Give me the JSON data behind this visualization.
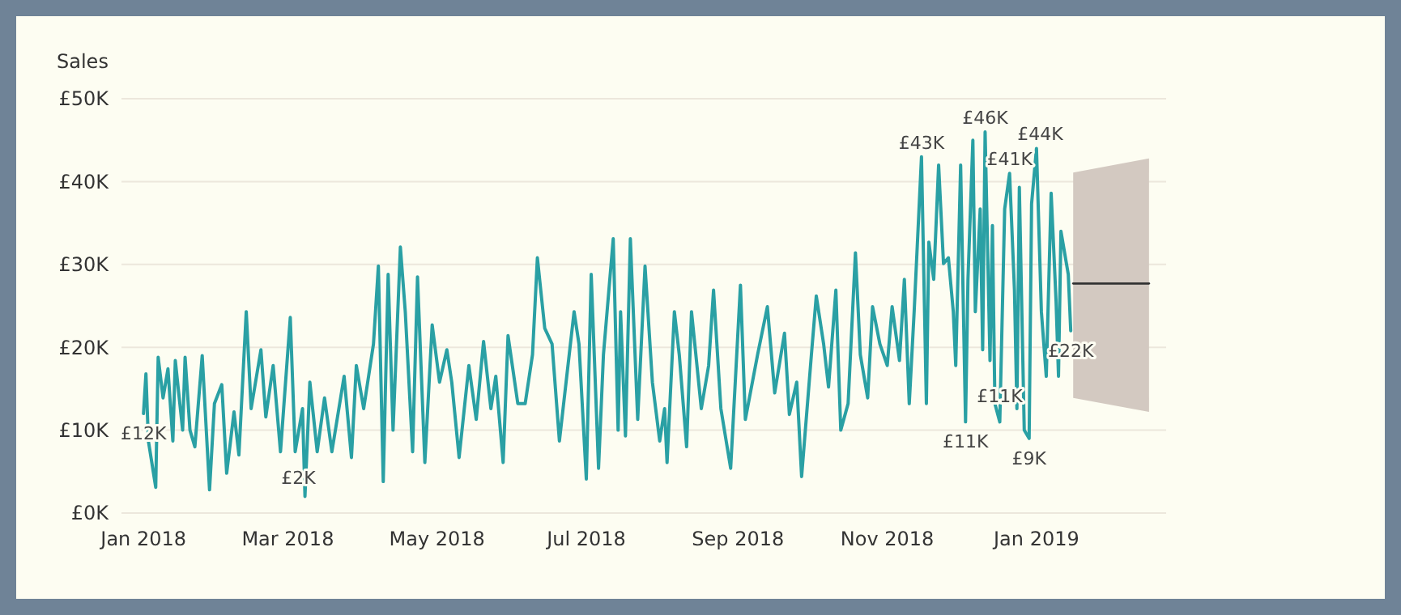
{
  "chart_data": {
    "type": "line",
    "ylabel": "Sales",
    "xlim": [
      "2017-12-23",
      "2019-02-23"
    ],
    "xticks": [
      {
        "value": "2018-01-01",
        "label": "Jan 2018"
      },
      {
        "value": "2018-03-01",
        "label": "Mar 2018"
      },
      {
        "value": "2018-05-01",
        "label": "May 2018"
      },
      {
        "value": "2018-07-01",
        "label": "Jul 2018"
      },
      {
        "value": "2018-09-01",
        "label": "Sep 2018"
      },
      {
        "value": "2018-11-01",
        "label": "Nov 2018"
      },
      {
        "value": "2019-01-01",
        "label": "Jan 2019"
      }
    ],
    "ylim": [
      0,
      50
    ],
    "yticks": [
      {
        "value": 0,
        "label": "£0K"
      },
      {
        "value": 10,
        "label": "£10K"
      },
      {
        "value": 20,
        "label": "£20K"
      },
      {
        "value": 30,
        "label": "£30K"
      },
      {
        "value": 40,
        "label": "£40K"
      },
      {
        "value": 50,
        "label": "£50K"
      }
    ],
    "grid": "y",
    "legend": false,
    "marker": "none",
    "line_style": "solid",
    "series": [
      {
        "type": "line",
        "color": "#2aa0a4",
        "x": [
          "2018-01-01",
          "2018-01-02",
          "2018-01-03",
          "2018-01-06",
          "2018-01-07",
          "2018-01-09",
          "2018-01-11",
          "2018-01-13",
          "2018-01-14",
          "2018-01-17",
          "2018-01-18",
          "2018-01-20",
          "2018-01-22",
          "2018-01-25",
          "2018-01-28",
          "2018-01-30",
          "2018-02-02",
          "2018-02-04",
          "2018-02-07",
          "2018-02-09",
          "2018-02-12",
          "2018-02-14",
          "2018-02-18",
          "2018-02-20",
          "2018-02-23",
          "2018-02-26",
          "2018-03-02",
          "2018-03-04",
          "2018-03-07",
          "2018-03-08",
          "2018-03-10",
          "2018-03-13",
          "2018-03-16",
          "2018-03-19",
          "2018-03-24",
          "2018-03-27",
          "2018-03-29",
          "2018-04-01",
          "2018-04-05",
          "2018-04-07",
          "2018-04-09",
          "2018-04-11",
          "2018-04-13",
          "2018-04-16",
          "2018-04-18",
          "2018-04-21",
          "2018-04-23",
          "2018-04-26",
          "2018-04-29",
          "2018-05-02",
          "2018-05-05",
          "2018-05-07",
          "2018-05-10",
          "2018-05-14",
          "2018-05-17",
          "2018-05-20",
          "2018-05-23",
          "2018-05-25",
          "2018-05-28",
          "2018-05-30",
          "2018-06-03",
          "2018-06-06",
          "2018-06-09",
          "2018-06-11",
          "2018-06-14",
          "2018-06-17",
          "2018-06-20",
          "2018-06-24",
          "2018-06-26",
          "2018-06-28",
          "2018-07-01",
          "2018-07-03",
          "2018-07-06",
          "2018-07-08",
          "2018-07-12",
          "2018-07-14",
          "2018-07-15",
          "2018-07-17",
          "2018-07-19",
          "2018-07-22",
          "2018-07-25",
          "2018-07-28",
          "2018-07-31",
          "2018-08-02",
          "2018-08-03",
          "2018-08-06",
          "2018-08-08",
          "2018-08-11",
          "2018-08-13",
          "2018-08-17",
          "2018-08-20",
          "2018-08-22",
          "2018-08-25",
          "2018-08-29",
          "2018-09-02",
          "2018-09-04",
          "2018-09-09",
          "2018-09-13",
          "2018-09-16",
          "2018-09-20",
          "2018-09-22",
          "2018-09-25",
          "2018-09-27",
          "2018-10-01",
          "2018-10-03",
          "2018-10-06",
          "2018-10-08",
          "2018-10-11",
          "2018-10-13",
          "2018-10-16",
          "2018-10-19",
          "2018-10-21",
          "2018-10-24",
          "2018-10-26",
          "2018-10-29",
          "2018-11-01",
          "2018-11-03",
          "2018-11-06",
          "2018-11-08",
          "2018-11-10",
          "2018-11-12",
          "2018-11-15",
          "2018-11-17",
          "2018-11-18",
          "2018-11-20",
          "2018-11-22",
          "2018-11-24",
          "2018-11-26",
          "2018-11-28",
          "2018-11-29",
          "2018-12-01",
          "2018-12-03",
          "2018-12-04",
          "2018-12-06",
          "2018-12-07",
          "2018-12-09",
          "2018-12-10",
          "2018-12-11",
          "2018-12-13",
          "2018-12-14",
          "2018-12-15",
          "2018-12-17",
          "2018-12-19",
          "2018-12-21",
          "2018-12-23",
          "2018-12-24",
          "2018-12-25",
          "2018-12-27",
          "2018-12-29",
          "2018-12-30",
          "2019-01-01",
          "2019-01-03",
          "2019-01-05",
          "2019-01-07",
          "2019-01-09",
          "2019-01-10",
          "2019-01-11",
          "2019-01-14",
          "2019-01-15"
        ],
        "values": [
          12,
          16.8,
          8.7,
          3.1,
          18.8,
          13.9,
          17.4,
          8.7,
          18.4,
          10,
          18.8,
          10,
          8,
          19,
          2.8,
          13.2,
          15.5,
          4.8,
          12.2,
          7,
          24.3,
          12.6,
          19.7,
          11.6,
          17.8,
          7.4,
          23.6,
          7.4,
          12.6,
          2,
          15.8,
          7.4,
          13.9,
          7.4,
          16.5,
          6.7,
          17.8,
          12.6,
          20.4,
          29.8,
          3.8,
          28.8,
          10,
          32.1,
          24.3,
          7.4,
          28.5,
          6.1,
          22.7,
          15.8,
          19.7,
          15.8,
          6.7,
          17.8,
          11.3,
          20.7,
          12.6,
          16.5,
          6.1,
          21.4,
          13.2,
          13.2,
          19.1,
          30.8,
          22.3,
          20.4,
          8.7,
          19.1,
          24.3,
          20.4,
          4.1,
          28.8,
          5.4,
          19.1,
          33.1,
          10,
          24.3,
          9.3,
          33.1,
          11.3,
          29.8,
          15.8,
          8.7,
          12.6,
          6.1,
          24.3,
          19.1,
          8,
          24.3,
          12.6,
          17.8,
          26.9,
          12.6,
          5.4,
          27.5,
          11.3,
          19.1,
          24.9,
          14.5,
          21.7,
          11.9,
          15.8,
          4.4,
          19.1,
          26.2,
          20.4,
          15.2,
          26.9,
          10,
          13.2,
          31.4,
          19.1,
          13.9,
          24.9,
          20.4,
          17.8,
          24.9,
          18.4,
          28.2,
          13.2,
          24.3,
          43,
          13.2,
          32.7,
          28.2,
          42,
          30.1,
          30.8,
          24.3,
          17.8,
          42,
          11,
          28.2,
          45,
          24.3,
          36.7,
          19.7,
          46,
          18.4,
          34.7,
          13.2,
          11,
          36.7,
          41,
          26.9,
          12.6,
          39.3,
          10,
          9,
          37.3,
          44,
          24.3,
          16.5,
          38.6,
          25.6,
          16.5,
          34,
          28.8,
          22
        ]
      },
      {
        "type": "line",
        "color": "#333333",
        "x": [
          "2019-01-16",
          "2019-02-16"
        ],
        "values": [
          27.7,
          27.7
        ],
        "lower": [
          13.9,
          12.2
        ],
        "upper": [
          41.1,
          42.8
        ]
      }
    ],
    "annotations": [
      {
        "text": "£12K",
        "x": "2018-01-01",
        "y": 12
      },
      {
        "text": "£2K",
        "x": "2018-03-08",
        "y": 2
      },
      {
        "text": "£43K",
        "x": "2018-11-15",
        "y": 43
      },
      {
        "text": "£46K",
        "x": "2018-12-11",
        "y": 46
      },
      {
        "text": "£41K",
        "x": "2018-12-21",
        "y": 41
      },
      {
        "text": "£44K",
        "x": "2019-01-01",
        "y": 44
      },
      {
        "text": "£11K",
        "x": "2018-12-03",
        "y": 11
      },
      {
        "text": "£11K",
        "x": "2018-12-17",
        "y": 11
      },
      {
        "text": "£9K",
        "x": "2018-12-29",
        "y": 9
      },
      {
        "text": "£22K",
        "x": "2019-01-15",
        "y": 22
      }
    ]
  }
}
